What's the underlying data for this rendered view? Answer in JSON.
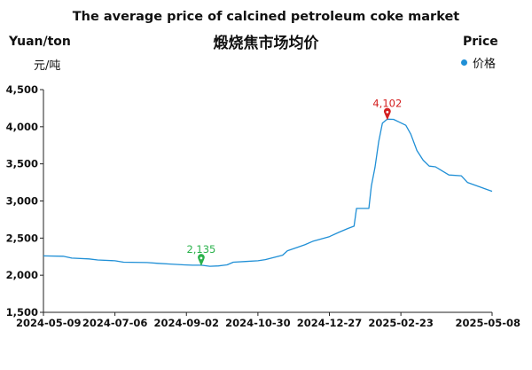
{
  "chart_data": {
    "type": "line",
    "title": "The average price of calcined petroleum coke market",
    "subtitle": "煅烧焦市场均价",
    "ylabel": "Yuan/ton",
    "ylabel_cn": "元/吨",
    "legend_title": "Price",
    "legend_entries": [
      "价格"
    ],
    "ylim": [
      1500,
      4500
    ],
    "yticks": [
      1500,
      2000,
      2500,
      3000,
      3500,
      4000,
      4500
    ],
    "ytick_labels": [
      "1,500",
      "2,000",
      "2,500",
      "3,000",
      "3,500",
      "4,000",
      "4,500"
    ],
    "xlim": [
      "2024-05-09",
      "2025-05-08"
    ],
    "xtick_labels": [
      "2024-05-09",
      "2024-07-06",
      "2024-09-02",
      "2024-10-30",
      "2024-12-27",
      "2025-02-23",
      "2025-05-08"
    ],
    "series": [
      {
        "name": "价格",
        "color": "#1f8fd6",
        "points": [
          [
            "2024-05-09",
            2260
          ],
          [
            "2024-05-25",
            2255
          ],
          [
            "2024-06-01",
            2230
          ],
          [
            "2024-06-15",
            2220
          ],
          [
            "2024-06-22",
            2205
          ],
          [
            "2024-07-06",
            2195
          ],
          [
            "2024-07-13",
            2175
          ],
          [
            "2024-08-01",
            2170
          ],
          [
            "2024-08-10",
            2160
          ],
          [
            "2024-08-20",
            2150
          ],
          [
            "2024-08-31",
            2140
          ],
          [
            "2024-09-07",
            2135
          ],
          [
            "2024-09-14",
            2135
          ],
          [
            "2024-09-21",
            2120
          ],
          [
            "2024-09-28",
            2125
          ],
          [
            "2024-10-05",
            2140
          ],
          [
            "2024-10-10",
            2175
          ],
          [
            "2024-10-20",
            2185
          ],
          [
            "2024-10-30",
            2195
          ],
          [
            "2024-11-05",
            2210
          ],
          [
            "2024-11-12",
            2240
          ],
          [
            "2024-11-19",
            2270
          ],
          [
            "2024-11-23",
            2330
          ],
          [
            "2024-11-30",
            2370
          ],
          [
            "2024-12-07",
            2410
          ],
          [
            "2024-12-14",
            2460
          ],
          [
            "2024-12-27",
            2520
          ],
          [
            "2025-01-04",
            2580
          ],
          [
            "2025-01-11",
            2630
          ],
          [
            "2025-01-16",
            2660
          ],
          [
            "2025-01-18",
            2900
          ],
          [
            "2025-01-28",
            2900
          ],
          [
            "2025-01-30",
            3200
          ],
          [
            "2025-02-02",
            3450
          ],
          [
            "2025-02-05",
            3800
          ],
          [
            "2025-02-08",
            4050
          ],
          [
            "2025-02-12",
            4102
          ],
          [
            "2025-02-17",
            4100
          ],
          [
            "2025-02-22",
            4060
          ],
          [
            "2025-02-27",
            4020
          ],
          [
            "2025-03-03",
            3900
          ],
          [
            "2025-03-08",
            3680
          ],
          [
            "2025-03-13",
            3550
          ],
          [
            "2025-03-18",
            3470
          ],
          [
            "2025-03-23",
            3460
          ],
          [
            "2025-03-28",
            3410
          ],
          [
            "2025-04-03",
            3350
          ],
          [
            "2025-04-13",
            3340
          ],
          [
            "2025-04-18",
            3250
          ],
          [
            "2025-04-23",
            3220
          ],
          [
            "2025-04-28",
            3190
          ],
          [
            "2025-05-03",
            3160
          ],
          [
            "2025-05-08",
            3130
          ]
        ]
      }
    ],
    "annotations": [
      {
        "label": "2,135",
        "x": "2024-09-14",
        "y": 2135,
        "kind": "min",
        "color": "#2bb24c"
      },
      {
        "label": "4,102",
        "x": "2025-02-12",
        "y": 4102,
        "kind": "max",
        "color": "#d42020"
      }
    ],
    "grid": false,
    "legend_position": "top-right"
  }
}
